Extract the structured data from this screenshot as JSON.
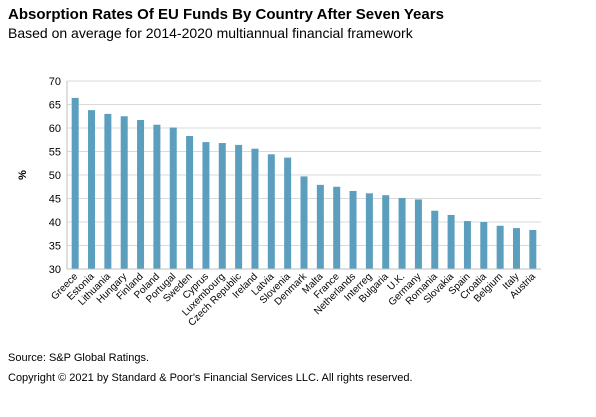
{
  "title": "Absorption Rates Of EU Funds By Country After Seven Years",
  "subtitle": "Based on average for 2014-2020 multiannual financial framework",
  "source": "Source: S&P Global Ratings.",
  "copyright": "Copyright © 2021 by Standard & Poor's Financial Services LLC. All rights reserved.",
  "colors": {
    "bar": "#5b9ebe",
    "grid": "#d9d9d9",
    "axis": "#bfbfbf"
  },
  "chart_data": {
    "type": "bar",
    "title": "",
    "xlabel": "",
    "ylabel": "%",
    "ylim": [
      30,
      70
    ],
    "yticks": [
      30,
      35,
      40,
      45,
      50,
      55,
      60,
      65,
      70
    ],
    "grid": true,
    "legend": "none",
    "categories": [
      "Greece",
      "Estonia",
      "Lithuania",
      "Hungary",
      "Finland",
      "Poland",
      "Portugal",
      "Sweden",
      "Cyprus",
      "Luxembourg",
      "Czech Republic",
      "Ireland",
      "Latvia",
      "Slovenia",
      "Denmark",
      "Malta",
      "France",
      "Netherlands",
      "Interreg",
      "Bulgaria",
      "U.K.",
      "Germany",
      "Romania",
      "Slovakia",
      "Spain",
      "Croatia",
      "Belgium",
      "Italy",
      "Austria"
    ],
    "values": [
      66.4,
      63.8,
      63.0,
      62.5,
      61.7,
      60.7,
      60.1,
      58.3,
      57.0,
      56.8,
      56.4,
      55.6,
      54.4,
      53.7,
      49.7,
      47.9,
      47.5,
      46.6,
      46.1,
      45.7,
      45.1,
      44.8,
      42.4,
      41.5,
      40.2,
      40.0,
      39.2,
      38.7,
      38.3
    ]
  }
}
